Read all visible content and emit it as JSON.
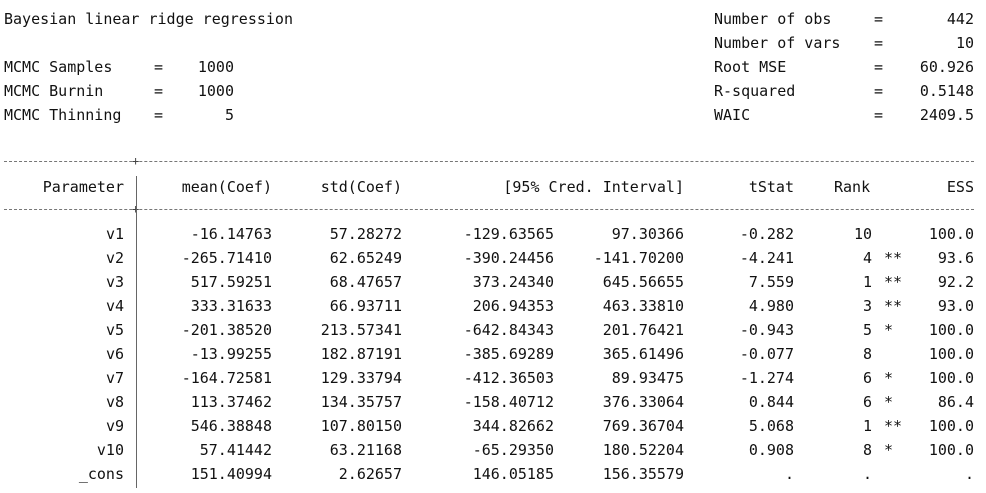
{
  "title": "Bayesian linear ridge regression",
  "mcmc": [
    {
      "label": "MCMC Samples",
      "value": "1000"
    },
    {
      "label": "MCMC Burnin",
      "value": "1000"
    },
    {
      "label": "MCMC Thinning",
      "value": "5"
    }
  ],
  "stats": [
    {
      "label": "Number of obs",
      "value": "442"
    },
    {
      "label": "Number of vars",
      "value": "10"
    },
    {
      "label": "Root MSE",
      "value": "60.926"
    },
    {
      "label": "R-squared",
      "value": "0.5148"
    },
    {
      "label": "WAIC",
      "value": "2409.5"
    }
  ],
  "table": {
    "headers": {
      "parameter": "Parameter",
      "mean": "mean(Coef)",
      "std": "std(Coef)",
      "ci": "[95% Cred. Interval]",
      "tstat": "tStat",
      "rank": "Rank",
      "ess": "ESS"
    },
    "rows": [
      {
        "param": "v1",
        "mean": "-16.14763",
        "std": "57.28272",
        "ci_lo": "-129.63565",
        "ci_hi": "97.30366",
        "tstat": "-0.282",
        "rank": "10",
        "sig": "",
        "ess": "100.0"
      },
      {
        "param": "v2",
        "mean": "-265.71410",
        "std": "62.65249",
        "ci_lo": "-390.24456",
        "ci_hi": "-141.70200",
        "tstat": "-4.241",
        "rank": "4",
        "sig": "**",
        "ess": "93.6"
      },
      {
        "param": "v3",
        "mean": "517.59251",
        "std": "68.47657",
        "ci_lo": "373.24340",
        "ci_hi": "645.56655",
        "tstat": "7.559",
        "rank": "1",
        "sig": "**",
        "ess": "92.2"
      },
      {
        "param": "v4",
        "mean": "333.31633",
        "std": "66.93711",
        "ci_lo": "206.94353",
        "ci_hi": "463.33810",
        "tstat": "4.980",
        "rank": "3",
        "sig": "**",
        "ess": "93.0"
      },
      {
        "param": "v5",
        "mean": "-201.38520",
        "std": "213.57341",
        "ci_lo": "-642.84343",
        "ci_hi": "201.76421",
        "tstat": "-0.943",
        "rank": "5",
        "sig": "*",
        "ess": "100.0"
      },
      {
        "param": "v6",
        "mean": "-13.99255",
        "std": "182.87191",
        "ci_lo": "-385.69289",
        "ci_hi": "365.61496",
        "tstat": "-0.077",
        "rank": "8",
        "sig": "",
        "ess": "100.0"
      },
      {
        "param": "v7",
        "mean": "-164.72581",
        "std": "129.33794",
        "ci_lo": "-412.36503",
        "ci_hi": "89.93475",
        "tstat": "-1.274",
        "rank": "6",
        "sig": "*",
        "ess": "100.0"
      },
      {
        "param": "v8",
        "mean": "113.37462",
        "std": "134.35757",
        "ci_lo": "-158.40712",
        "ci_hi": "376.33064",
        "tstat": "0.844",
        "rank": "6",
        "sig": "*",
        "ess": "86.4"
      },
      {
        "param": "v9",
        "mean": "546.38848",
        "std": "107.80150",
        "ci_lo": "344.82662",
        "ci_hi": "769.36704",
        "tstat": "5.068",
        "rank": "1",
        "sig": "**",
        "ess": "100.0"
      },
      {
        "param": "v10",
        "mean": "57.41442",
        "std": "63.21168",
        "ci_lo": "-65.29350",
        "ci_hi": "180.52204",
        "tstat": "0.908",
        "rank": "8",
        "sig": "*",
        "ess": "100.0"
      },
      {
        "param": "_cons",
        "mean": "151.40994",
        "std": "2.62657",
        "ci_lo": "146.05185",
        "ci_hi": "156.35579",
        "tstat": ".",
        "rank": ".",
        "sig": "",
        "ess": "."
      }
    ]
  }
}
